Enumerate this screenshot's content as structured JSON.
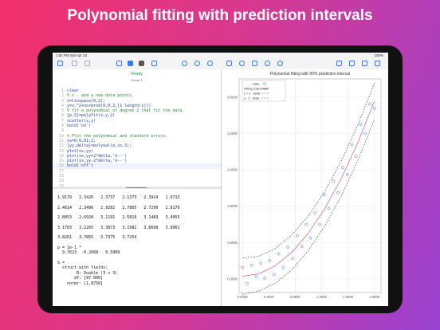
{
  "title": "Polynomial fitting with prediction intervals",
  "status_bar": {
    "time": "1:52 PM",
    "date": "Sat Apr 23",
    "battery": "100%"
  },
  "editor": {
    "status": "Ready",
    "tab": "Home 1",
    "lines": [
      {
        "n": 1,
        "code": "clear"
      },
      {
        "n": 2,
        "code": "% x - and a new data points."
      },
      {
        "n": 3,
        "code": "x=linspace(0,2);"
      },
      {
        "n": 4,
        "code": "y=x.^2+normrnd(0,0.2,[1 length(x)])"
      },
      {
        "n": 5,
        "code": "% fit a polynomial of degree 2 that fit the data."
      },
      {
        "n": 6,
        "code": "[p,S]=polyfit(x,y,2)"
      },
      {
        "n": 7,
        "code": "scatter(x,y)"
      },
      {
        "n": 8,
        "code": "hold('on')"
      },
      {
        "n": 9
      },
      {
        "n": 10,
        "code": "% Plot the polynomial and standard errors."
      },
      {
        "n": 11,
        "code": "xx=0:0.01:2;"
      },
      {
        "n": 12,
        "code": "[yy,delta]=polyval(p,xx,S);"
      },
      {
        "n": 13,
        "code": "plot(xx,yy)"
      },
      {
        "n": 14,
        "code": "plot(xx,yy+2*delta,'k--')"
      },
      {
        "n": 15,
        "code": "plot(xx,yy-2*delta,'k--')"
      },
      {
        "n": 16,
        "code": "hold('off')"
      },
      {
        "n": 17
      },
      {
        "n": 18
      },
      {
        "n": 19
      },
      {
        "n": 20
      }
    ]
  },
  "console": {
    "blocks": [
      [
        "1.9179   2.3426   2.3737   2.1373   2.3924   1.9713"
      ],
      [
        "2.4614   2.3496   2.9282   2.7865   2.7290   2.8170"
      ],
      [
        "2.8053   2.6928   3.1191   2.5819   3.1483   3.4055"
      ],
      [
        "3.1703   3.2265   3.3873   3.1982   3.6698   3.8961"
      ],
      [
        "3.8261   3.7855   3.7375   3.7254"
      ],
      [
        "p = 1e-1 *",
        "  9.7623  -0.2668   0.5909"
      ],
      [
        "S =",
        "  struct with fields:",
        "        R: Double (3 x 3)",
        "       df: [97.000]",
        "    normr: [1.8756]"
      ]
    ]
  },
  "chart_data": {
    "type": "scatter",
    "title": "Polynomial fitting with 95% prediction interval",
    "xlim": [
      -0.05,
      2.1
    ],
    "ylim": [
      -0.3,
      4.4
    ],
    "xticks": [
      {
        "value": 0,
        "label": "0.0000"
      },
      {
        "value": 0.4,
        "label": "0.4000"
      },
      {
        "value": 0.8,
        "label": "0.8000"
      },
      {
        "value": 1.2,
        "label": "1.2000"
      },
      {
        "value": 1.6,
        "label": "1.6000"
      },
      {
        "value": 2,
        "label": "2.0000"
      }
    ],
    "yticks": [
      {
        "value": 0,
        "label": "0.0000"
      },
      {
        "value": 0.8,
        "label": "0.8000"
      },
      {
        "value": 1.6,
        "label": "1.6000"
      },
      {
        "value": 2.4,
        "label": "2.4000"
      },
      {
        "value": 3.2,
        "label": "3.2000"
      },
      {
        "value": 4,
        "label": "4.0000"
      }
    ],
    "grid": true,
    "legend": "top-left",
    "series": [
      {
        "name": "Data",
        "type": "scatter",
        "color": "#3a7bd5",
        "x": [
          0,
          0.07,
          0.14,
          0.21,
          0.28,
          0.34,
          0.41,
          0.48,
          0.55,
          0.62,
          0.69,
          0.76,
          0.83,
          0.9,
          0.97,
          1.03,
          1.1,
          1.17,
          1.24,
          1.31,
          1.38,
          1.45,
          1.52,
          1.59,
          1.66,
          1.72,
          1.79,
          1.86,
          1.93,
          2
        ],
        "values": [
          0.25,
          -0.1,
          0.3,
          0.05,
          0.35,
          0.02,
          0.4,
          0.1,
          0.55,
          0.25,
          0.7,
          0.45,
          0.95,
          0.72,
          1.2,
          0.9,
          1.45,
          1.2,
          1.85,
          1.55,
          2.15,
          1.9,
          2.45,
          2.3,
          2.95,
          2.7,
          3.4,
          3.2,
          3.85,
          3.75
        ]
      },
      {
        "name": "Fitting polynomial",
        "type": "line",
        "color": "#d04070",
        "x": [
          0,
          0.25,
          0.5,
          0.75,
          1,
          1.25,
          1.5,
          1.75,
          2
        ],
        "values": [
          0.059,
          0.113,
          0.29,
          0.588,
          1.009,
          1.551,
          2.216,
          3.002,
          3.911
        ]
      },
      {
        "name": "y + 2 · delta",
        "type": "line",
        "color": "#444444",
        "dashed": true,
        "x": [
          0,
          0.25,
          0.5,
          0.75,
          1,
          1.25,
          1.5,
          1.75,
          2
        ],
        "values": [
          0.46,
          0.5,
          0.67,
          0.97,
          1.39,
          1.93,
          2.6,
          3.39,
          4.31
        ]
      },
      {
        "name": "y - 2 · delta",
        "type": "line",
        "color": "#444444",
        "dashed": true,
        "x": [
          0,
          0.25,
          0.5,
          0.75,
          1,
          1.25,
          1.5,
          1.75,
          2
        ],
        "values": [
          -0.34,
          -0.27,
          -0.09,
          0.2,
          0.63,
          1.17,
          1.83,
          2.61,
          3.51
        ]
      }
    ]
  }
}
